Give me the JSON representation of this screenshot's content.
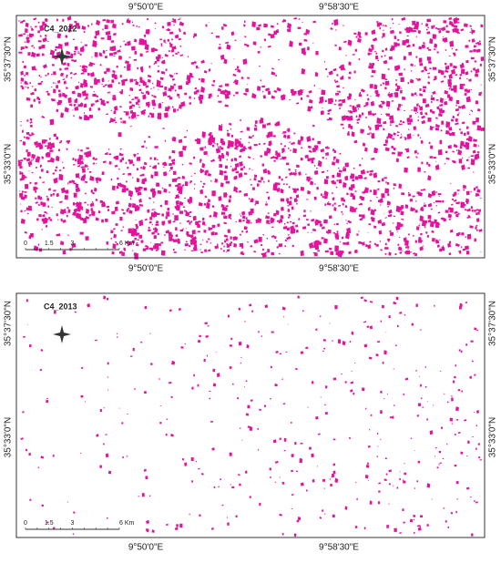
{
  "panels": [
    {
      "title": "C4_2012",
      "top_labels": [
        "9°50'0\"E",
        "9°58'30\"E"
      ],
      "left_labels": [
        "35°37'30\"N",
        "35°33'0\"N"
      ],
      "right_labels": [
        "35°37'30\"N",
        "35°33'0\"N"
      ],
      "scale_labels": [
        "0",
        "1.5",
        "3",
        "6 Km"
      ]
    },
    {
      "title": "C4_2013",
      "top_labels": [
        "9°50'0\"E",
        "9°58'30\"E"
      ],
      "bottom_labels": [
        "9°50'0\"E",
        "9°58'30\"E"
      ],
      "left_labels": [
        "35°37'30\"N",
        "35°33'0\"N"
      ],
      "right_labels": [
        "35°37'30\"N",
        "35°33'0\"N"
      ],
      "scale_labels": [
        "0",
        "1.5",
        "3",
        "6 Km"
      ]
    }
  ]
}
